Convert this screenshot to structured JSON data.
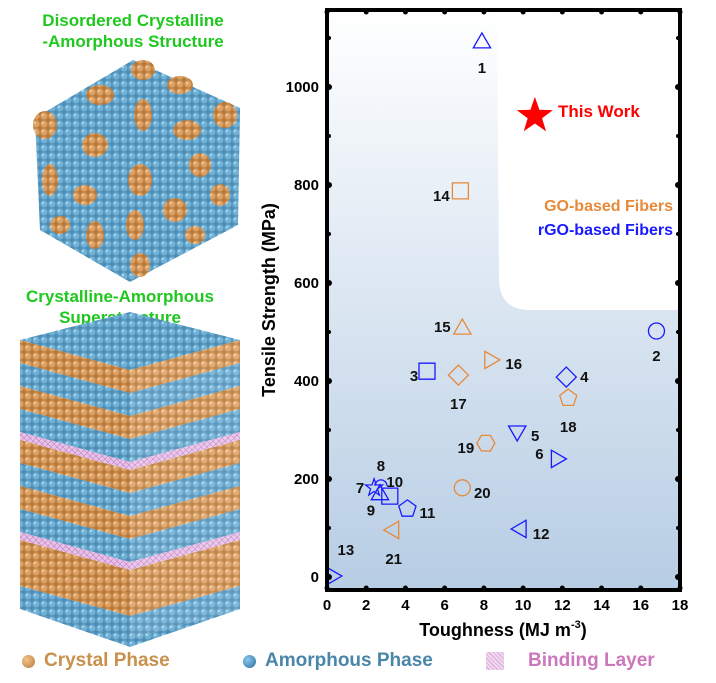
{
  "titles": {
    "top": "Disordered Crystalline -Amorphous Structure",
    "top_line1": "Disordered Crystalline",
    "top_line2": "-Amorphous Structure",
    "bottom_line1": "Crystalline-Amorphous",
    "bottom_line2": "Superstructure"
  },
  "legend": {
    "crystal": "Crystal Phase",
    "amorphous": "Amorphous Phase",
    "binding": "Binding Layer",
    "colors": {
      "crystal": "#d9984f",
      "amorphous": "#5a9ec4",
      "binding": "#cc77bb"
    }
  },
  "chart_data": {
    "type": "scatter",
    "xlabel": "Toughness (MJ m",
    "xlabel_sup": "-3",
    "xlabel_close": ")",
    "ylabel": "Tensile Strength (MPa)",
    "xlim": [
      0,
      18
    ],
    "ylim": [
      -30,
      1130
    ],
    "xticks": [
      "0",
      "2",
      "4",
      "6",
      "8",
      "10",
      "12",
      "14",
      "16",
      "18"
    ],
    "yticks": [
      "0",
      "200",
      "400",
      "600",
      "800",
      "1000"
    ],
    "grid": false,
    "colors": {
      "go": "#e8893a",
      "rgo": "#1a1aff",
      "this": "#ff0000"
    },
    "legend_labels": {
      "go": "GO-based Fibers",
      "rgo": "rGO-based Fibers",
      "this": "This Work"
    },
    "this_work": {
      "x": 10.6,
      "y": 941,
      "marker": "star"
    },
    "points": [
      {
        "label": "1",
        "group": "rgo",
        "marker": "triangle-up",
        "x": 7.9,
        "y": 1090
      },
      {
        "label": "2",
        "group": "rgo",
        "marker": "circle",
        "x": 16.8,
        "y": 502
      },
      {
        "label": "3",
        "group": "rgo",
        "marker": "square",
        "x": 5.1,
        "y": 420
      },
      {
        "label": "4",
        "group": "rgo",
        "marker": "diamond",
        "x": 12.2,
        "y": 408
      },
      {
        "label": "5",
        "group": "rgo",
        "marker": "triangle-down",
        "x": 9.7,
        "y": 298
      },
      {
        "label": "6",
        "group": "rgo",
        "marker": "triangle-right",
        "x": 11.7,
        "y": 241
      },
      {
        "label": "7",
        "group": "rgo",
        "marker": "star",
        "x": 2.4,
        "y": 182
      },
      {
        "label": "8",
        "group": "rgo",
        "marker": "half-circle",
        "x": 2.75,
        "y": 186
      },
      {
        "label": "9",
        "group": "rgo",
        "marker": "triangle-up",
        "x": 2.7,
        "y": 168
      },
      {
        "label": "10",
        "group": "rgo",
        "marker": "square",
        "x": 3.2,
        "y": 165
      },
      {
        "label": "11",
        "group": "rgo",
        "marker": "pentagon",
        "x": 4.1,
        "y": 139
      },
      {
        "label": "12",
        "group": "rgo",
        "marker": "triangle-left",
        "x": 9.9,
        "y": 98
      },
      {
        "label": "13",
        "group": "rgo",
        "marker": "triangle-right",
        "x": 0.25,
        "y": 2
      },
      {
        "label": "14",
        "group": "go",
        "marker": "square",
        "x": 6.8,
        "y": 788
      },
      {
        "label": "15",
        "group": "go",
        "marker": "triangle-up",
        "x": 6.9,
        "y": 506
      },
      {
        "label": "16",
        "group": "go",
        "marker": "triangle-right",
        "x": 8.3,
        "y": 443
      },
      {
        "label": "17",
        "group": "go",
        "marker": "diamond",
        "x": 6.7,
        "y": 412
      },
      {
        "label": "18",
        "group": "go",
        "marker": "pentagon",
        "x": 12.3,
        "y": 365
      },
      {
        "label": "19",
        "group": "go",
        "marker": "hexagon",
        "x": 8.1,
        "y": 273
      },
      {
        "label": "20",
        "group": "go",
        "marker": "circle",
        "x": 6.9,
        "y": 182
      },
      {
        "label": "21",
        "group": "go",
        "marker": "triangle-left",
        "x": 3.4,
        "y": 96
      }
    ]
  }
}
